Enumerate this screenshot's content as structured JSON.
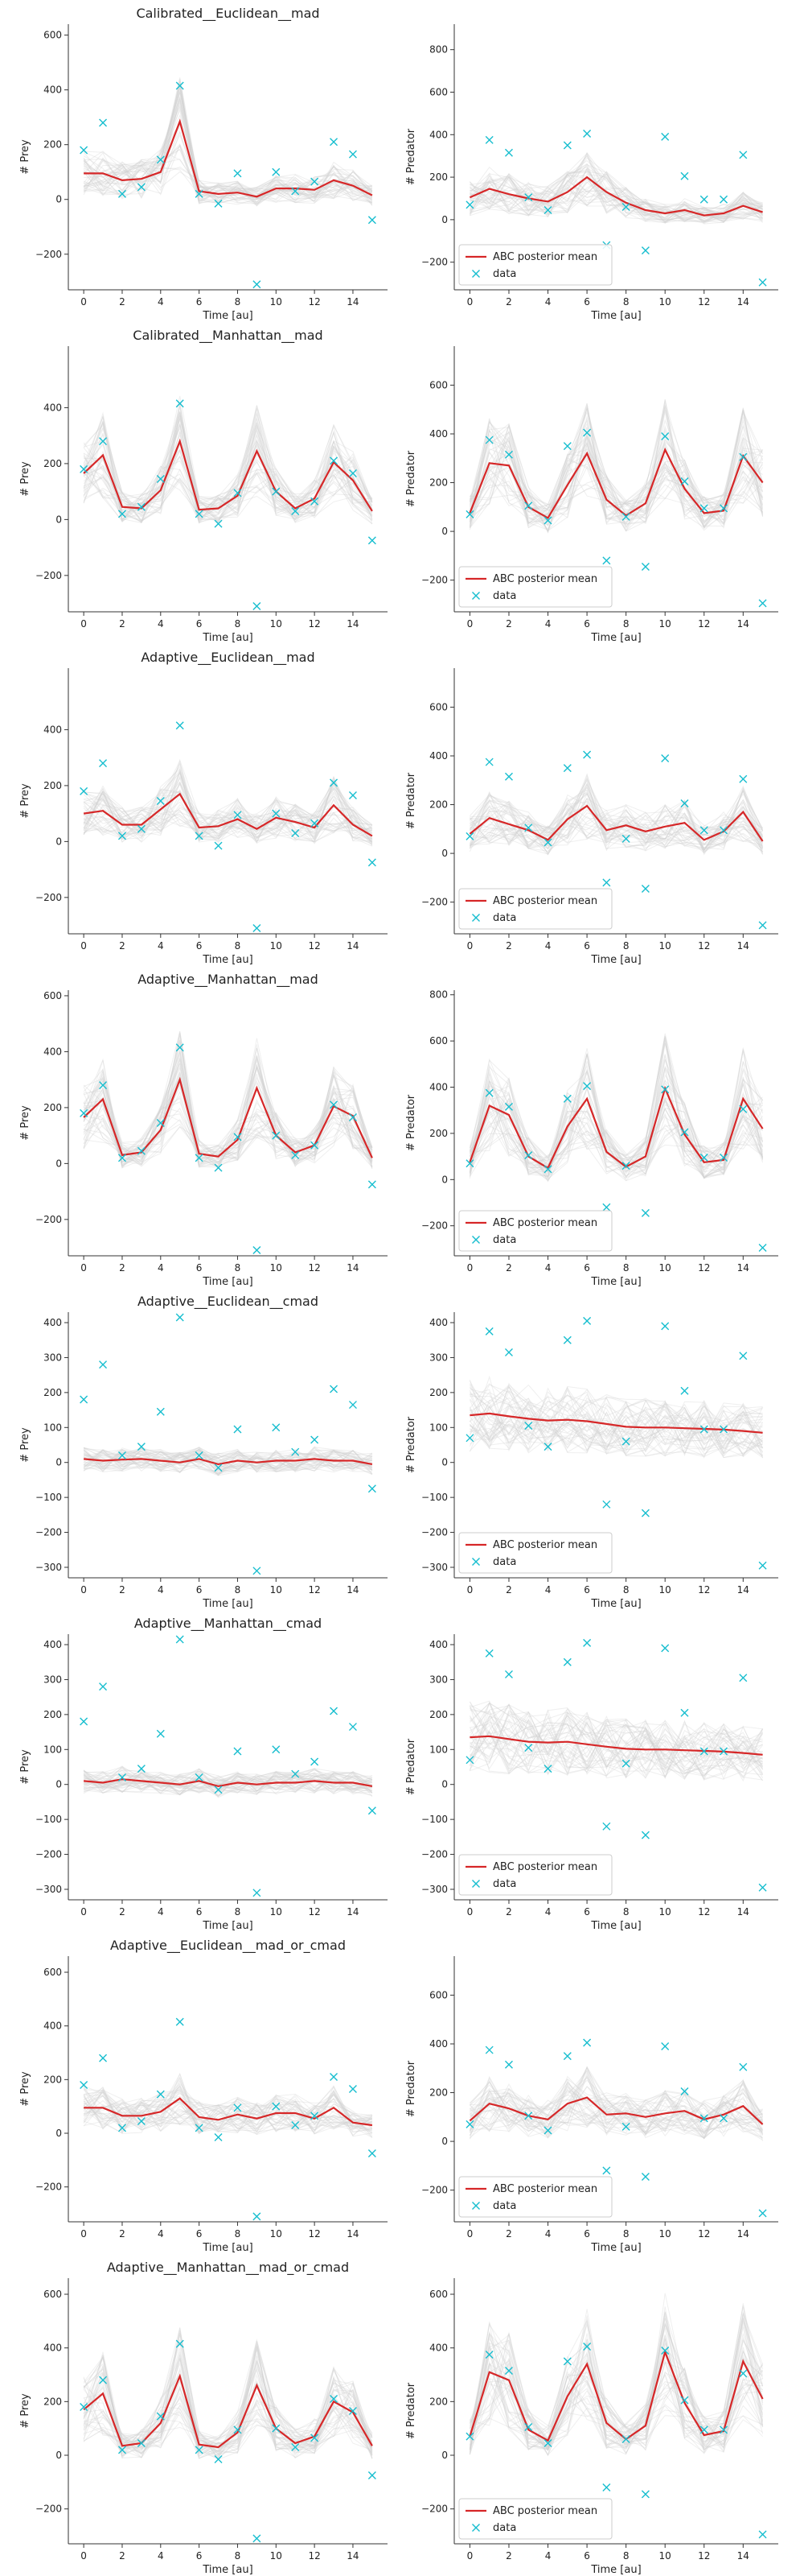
{
  "labels": {
    "xlabel": "Time [au]",
    "ylabel_prey": "# Prey",
    "ylabel_predator": "# Predator",
    "legend_mean": "ABC posterior mean",
    "legend_data": "data"
  },
  "colors": {
    "mean_line": "#d62728",
    "data_marker": "#17becf",
    "samples": "#d0d0d0",
    "axis": "#333333"
  },
  "x_ticks": [
    0,
    2,
    4,
    6,
    8,
    10,
    12,
    14
  ],
  "observed": {
    "x": [
      0,
      1,
      2,
      3,
      4,
      5,
      6,
      7,
      8,
      9,
      10,
      11,
      12,
      13,
      14,
      15
    ],
    "prey": [
      180,
      280,
      20,
      45,
      145,
      415,
      20,
      -15,
      95,
      -310,
      100,
      30,
      65,
      210,
      165,
      -75
    ],
    "predator": [
      70,
      375,
      315,
      105,
      45,
      350,
      405,
      -120,
      60,
      -145,
      390,
      205,
      95,
      95,
      305,
      -295
    ]
  },
  "chart_data": [
    {
      "type": "line",
      "title": "Calibrated__Euclidean__mad",
      "xlabel": "Time [au]",
      "ylabel": "# Prey",
      "xlim": [
        -0.8,
        15.8
      ],
      "ylim": [
        -330,
        640
      ],
      "yticks": [
        -200,
        0,
        200,
        400,
        600
      ],
      "legend": false,
      "mean": [
        95,
        95,
        70,
        75,
        100,
        285,
        30,
        20,
        25,
        10,
        40,
        40,
        35,
        70,
        50,
        15
      ],
      "series": [
        {
          "name": "ABC posterior mean",
          "kind": "line"
        },
        {
          "name": "data",
          "kind": "marker"
        }
      ]
    },
    {
      "type": "line",
      "title": "",
      "xlabel": "Time [au]",
      "ylabel": "# Predator",
      "xlim": [
        -0.8,
        15.8
      ],
      "ylim": [
        -330,
        920
      ],
      "yticks": [
        -200,
        0,
        200,
        400,
        600,
        800
      ],
      "legend": true,
      "mean": [
        105,
        145,
        120,
        100,
        85,
        130,
        200,
        130,
        80,
        45,
        30,
        45,
        20,
        30,
        65,
        35
      ],
      "series": [
        {
          "name": "ABC posterior mean",
          "kind": "line"
        },
        {
          "name": "data",
          "kind": "marker"
        }
      ]
    },
    {
      "type": "line",
      "title": "Calibrated__Manhattan__mad",
      "xlabel": "Time [au]",
      "ylabel": "# Prey",
      "xlim": [
        -0.8,
        15.8
      ],
      "ylim": [
        -330,
        620
      ],
      "yticks": [
        -200,
        0,
        200,
        400
      ],
      "legend": false,
      "mean": [
        165,
        230,
        45,
        40,
        105,
        280,
        35,
        40,
        85,
        245,
        100,
        40,
        75,
        205,
        140,
        30
      ],
      "series": [
        {
          "name": "ABC posterior mean",
          "kind": "line"
        },
        {
          "name": "data",
          "kind": "marker"
        }
      ]
    },
    {
      "type": "line",
      "title": "",
      "xlabel": "Time [au]",
      "ylabel": "# Predator",
      "xlim": [
        -0.8,
        15.8
      ],
      "ylim": [
        -330,
        760
      ],
      "yticks": [
        -200,
        0,
        200,
        400,
        600
      ],
      "legend": true,
      "mean": [
        75,
        280,
        270,
        100,
        55,
        190,
        320,
        130,
        65,
        115,
        335,
        175,
        75,
        85,
        310,
        200
      ],
      "series": [
        {
          "name": "ABC posterior mean",
          "kind": "line"
        },
        {
          "name": "data",
          "kind": "marker"
        }
      ]
    },
    {
      "type": "line",
      "title": "Adaptive__Euclidean__mad",
      "xlabel": "Time [au]",
      "ylabel": "# Prey",
      "xlim": [
        -0.8,
        15.8
      ],
      "ylim": [
        -330,
        620
      ],
      "yticks": [
        -200,
        0,
        200,
        400
      ],
      "legend": false,
      "mean": [
        100,
        110,
        60,
        60,
        115,
        170,
        50,
        55,
        80,
        45,
        85,
        70,
        50,
        130,
        60,
        20
      ],
      "series": [
        {
          "name": "ABC posterior mean",
          "kind": "line"
        },
        {
          "name": "data",
          "kind": "marker"
        }
      ]
    },
    {
      "type": "line",
      "title": "",
      "xlabel": "Time [au]",
      "ylabel": "# Predator",
      "xlim": [
        -0.8,
        15.8
      ],
      "ylim": [
        -330,
        760
      ],
      "yticks": [
        -200,
        0,
        200,
        400,
        600
      ],
      "legend": true,
      "mean": [
        80,
        145,
        120,
        95,
        55,
        140,
        195,
        95,
        115,
        90,
        110,
        125,
        55,
        90,
        170,
        50
      ],
      "series": [
        {
          "name": "ABC posterior mean",
          "kind": "line"
        },
        {
          "name": "data",
          "kind": "marker"
        }
      ]
    },
    {
      "type": "line",
      "title": "Adaptive__Manhattan__mad",
      "xlabel": "Time [au]",
      "ylabel": "# Prey",
      "xlim": [
        -0.8,
        15.8
      ],
      "ylim": [
        -330,
        620
      ],
      "yticks": [
        -200,
        0,
        200,
        400,
        600
      ],
      "legend": false,
      "mean": [
        165,
        230,
        30,
        40,
        120,
        300,
        35,
        25,
        85,
        270,
        100,
        40,
        65,
        205,
        170,
        20
      ],
      "series": [
        {
          "name": "ABC posterior mean",
          "kind": "line"
        },
        {
          "name": "data",
          "kind": "marker"
        }
      ]
    },
    {
      "type": "line",
      "title": "",
      "xlabel": "Time [au]",
      "ylabel": "# Predator",
      "xlim": [
        -0.8,
        15.8
      ],
      "ylim": [
        -330,
        820
      ],
      "yticks": [
        -200,
        0,
        200,
        400,
        600,
        800
      ],
      "legend": true,
      "mean": [
        75,
        320,
        280,
        100,
        50,
        230,
        350,
        120,
        55,
        100,
        395,
        195,
        75,
        85,
        350,
        220
      ],
      "series": [
        {
          "name": "ABC posterior mean",
          "kind": "line"
        },
        {
          "name": "data",
          "kind": "marker"
        }
      ]
    },
    {
      "type": "line",
      "title": "Adaptive__Euclidean__cmad",
      "xlabel": "Time [au]",
      "ylabel": "# Prey",
      "xlim": [
        -0.8,
        15.8
      ],
      "ylim": [
        -330,
        430
      ],
      "yticks": [
        -300,
        -200,
        -100,
        0,
        100,
        200,
        300,
        400
      ],
      "legend": false,
      "mean": [
        10,
        5,
        8,
        10,
        5,
        0,
        10,
        -5,
        5,
        0,
        5,
        5,
        10,
        5,
        5,
        -5
      ],
      "series": [
        {
          "name": "ABC posterior mean",
          "kind": "line"
        },
        {
          "name": "data",
          "kind": "marker"
        }
      ]
    },
    {
      "type": "line",
      "title": "",
      "xlabel": "Time [au]",
      "ylabel": "# Predator",
      "xlim": [
        -0.8,
        15.8
      ],
      "ylim": [
        -330,
        430
      ],
      "yticks": [
        -300,
        -200,
        -100,
        0,
        100,
        200,
        300,
        400
      ],
      "legend": true,
      "mean": [
        135,
        140,
        132,
        125,
        120,
        122,
        118,
        110,
        102,
        100,
        100,
        98,
        96,
        94,
        90,
        85
      ],
      "series": [
        {
          "name": "ABC posterior mean",
          "kind": "line"
        },
        {
          "name": "data",
          "kind": "marker"
        }
      ]
    },
    {
      "type": "line",
      "title": "Adaptive__Manhattan__cmad",
      "xlabel": "Time [au]",
      "ylabel": "# Prey",
      "xlim": [
        -0.8,
        15.8
      ],
      "ylim": [
        -330,
        430
      ],
      "yticks": [
        -300,
        -200,
        -100,
        0,
        100,
        200,
        300,
        400
      ],
      "legend": false,
      "mean": [
        10,
        5,
        15,
        10,
        5,
        0,
        10,
        -5,
        5,
        0,
        5,
        5,
        10,
        5,
        5,
        -5
      ],
      "series": [
        {
          "name": "ABC posterior mean",
          "kind": "line"
        },
        {
          "name": "data",
          "kind": "marker"
        }
      ]
    },
    {
      "type": "line",
      "title": "",
      "xlabel": "Time [au]",
      "ylabel": "# Predator",
      "xlim": [
        -0.8,
        15.8
      ],
      "ylim": [
        -330,
        430
      ],
      "yticks": [
        -300,
        -200,
        -100,
        0,
        100,
        200,
        300,
        400
      ],
      "legend": true,
      "mean": [
        135,
        138,
        130,
        122,
        120,
        122,
        115,
        108,
        102,
        100,
        100,
        98,
        96,
        94,
        90,
        85
      ],
      "series": [
        {
          "name": "ABC posterior mean",
          "kind": "line"
        },
        {
          "name": "data",
          "kind": "marker"
        }
      ]
    },
    {
      "type": "line",
      "title": "Adaptive__Euclidean__mad_or_cmad",
      "xlabel": "Time [au]",
      "ylabel": "# Prey",
      "xlim": [
        -0.8,
        15.8
      ],
      "ylim": [
        -330,
        660
      ],
      "yticks": [
        -200,
        0,
        200,
        400,
        600
      ],
      "legend": false,
      "mean": [
        95,
        95,
        65,
        65,
        80,
        130,
        60,
        50,
        70,
        55,
        75,
        75,
        55,
        95,
        40,
        30
      ],
      "series": [
        {
          "name": "ABC posterior mean",
          "kind": "line"
        },
        {
          "name": "data",
          "kind": "marker"
        }
      ]
    },
    {
      "type": "line",
      "title": "",
      "xlabel": "Time [au]",
      "ylabel": "# Predator",
      "xlim": [
        -0.8,
        15.8
      ],
      "ylim": [
        -330,
        760
      ],
      "yticks": [
        -200,
        0,
        200,
        400,
        600
      ],
      "legend": true,
      "mean": [
        85,
        155,
        135,
        105,
        90,
        155,
        180,
        110,
        115,
        100,
        115,
        125,
        90,
        110,
        145,
        70
      ],
      "series": [
        {
          "name": "ABC posterior mean",
          "kind": "line"
        },
        {
          "name": "data",
          "kind": "marker"
        }
      ]
    },
    {
      "type": "line",
      "title": "Adaptive__Manhattan__mad_or_cmad",
      "xlabel": "Time [au]",
      "ylabel": "# Prey",
      "xlim": [
        -0.8,
        15.8
      ],
      "ylim": [
        -330,
        660
      ],
      "yticks": [
        -200,
        0,
        200,
        400,
        600
      ],
      "legend": false,
      "mean": [
        170,
        230,
        35,
        45,
        120,
        295,
        40,
        30,
        85,
        260,
        100,
        45,
        70,
        200,
        160,
        35
      ],
      "series": [
        {
          "name": "ABC posterior mean",
          "kind": "line"
        },
        {
          "name": "data",
          "kind": "marker"
        }
      ]
    },
    {
      "type": "line",
      "title": "",
      "xlabel": "Time [au]",
      "ylabel": "# Predator",
      "xlim": [
        -0.8,
        15.8
      ],
      "ylim": [
        -330,
        660
      ],
      "yticks": [
        -200,
        0,
        200,
        400,
        600
      ],
      "legend": true,
      "mean": [
        70,
        310,
        280,
        95,
        55,
        220,
        340,
        120,
        60,
        110,
        385,
        195,
        75,
        90,
        350,
        210
      ],
      "series": [
        {
          "name": "ABC posterior mean",
          "kind": "line"
        },
        {
          "name": "data",
          "kind": "marker"
        }
      ]
    }
  ]
}
